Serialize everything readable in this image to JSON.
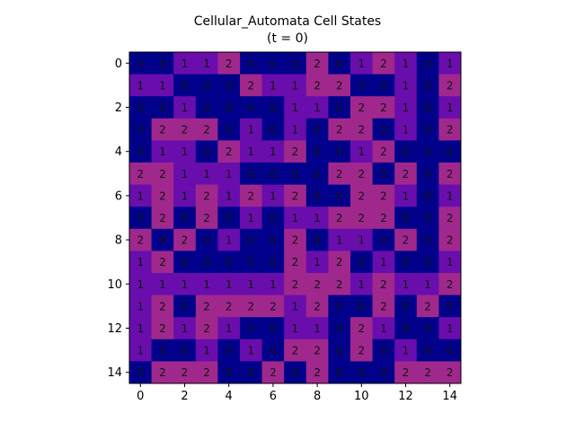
{
  "chart_data": {
    "type": "heatmap",
    "title": "Cellular_Automata Cell States",
    "subtitle": "(t = 0)",
    "rows": 15,
    "cols": 15,
    "x_ticks": [
      "0",
      "2",
      "4",
      "6",
      "8",
      "10",
      "12",
      "14"
    ],
    "y_ticks": [
      "0",
      "2",
      "4",
      "6",
      "8",
      "10",
      "12",
      "14"
    ],
    "colors": {
      "0": "#00008b",
      "1": "#6a0dad",
      "2": "#a0288c"
    },
    "grid": false,
    "values": [
      [
        0,
        0,
        1,
        1,
        2,
        0,
        0,
        0,
        2,
        0,
        1,
        2,
        1,
        0,
        1
      ],
      [
        1,
        1,
        0,
        0,
        0,
        2,
        1,
        1,
        2,
        2,
        0,
        0,
        1,
        0,
        2
      ],
      [
        0,
        0,
        1,
        0,
        0,
        0,
        0,
        1,
        1,
        0,
        2,
        2,
        1,
        0,
        1
      ],
      [
        0,
        2,
        2,
        2,
        0,
        1,
        0,
        1,
        0,
        2,
        2,
        0,
        1,
        0,
        2
      ],
      [
        0,
        1,
        1,
        0,
        2,
        1,
        1,
        2,
        0,
        0,
        1,
        2,
        0,
        0,
        0
      ],
      [
        2,
        2,
        1,
        1,
        1,
        0,
        0,
        0,
        0,
        2,
        2,
        0,
        2,
        0,
        2
      ],
      [
        1,
        2,
        1,
        2,
        1,
        2,
        1,
        2,
        0,
        0,
        2,
        2,
        1,
        0,
        1
      ],
      [
        0,
        2,
        0,
        2,
        0,
        1,
        0,
        1,
        1,
        2,
        2,
        2,
        0,
        0,
        2
      ],
      [
        2,
        0,
        2,
        0,
        1,
        0,
        0,
        2,
        0,
        1,
        1,
        0,
        2,
        0,
        2
      ],
      [
        1,
        2,
        0,
        0,
        0,
        0,
        0,
        2,
        1,
        2,
        0,
        1,
        0,
        0,
        1
      ],
      [
        1,
        1,
        1,
        1,
        1,
        1,
        1,
        2,
        2,
        2,
        1,
        2,
        1,
        1,
        2
      ],
      [
        1,
        2,
        0,
        2,
        2,
        2,
        2,
        1,
        2,
        0,
        0,
        2,
        0,
        2,
        0
      ],
      [
        1,
        2,
        1,
        2,
        1,
        0,
        0,
        1,
        1,
        0,
        2,
        1,
        0,
        0,
        1
      ],
      [
        1,
        0,
        0,
        1,
        0,
        1,
        0,
        2,
        2,
        0,
        2,
        0,
        1,
        0,
        0
      ],
      [
        0,
        2,
        2,
        2,
        0,
        0,
        2,
        0,
        2,
        0,
        0,
        0,
        2,
        2,
        2
      ]
    ]
  }
}
